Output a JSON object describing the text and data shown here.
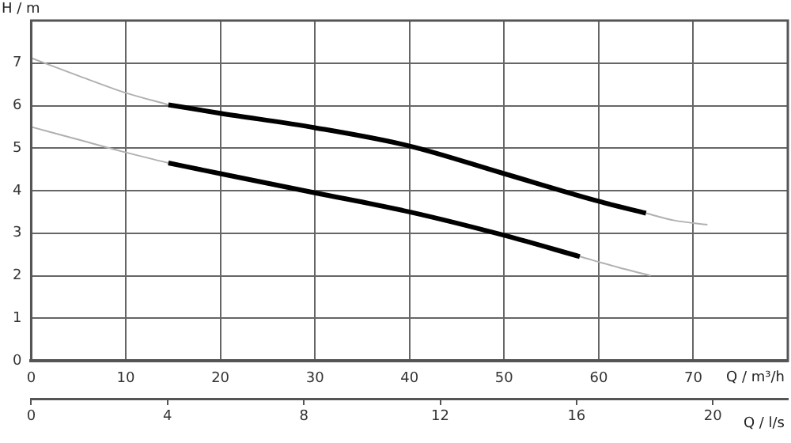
{
  "chart_data": {
    "type": "line",
    "xlabel": "Q / m³/h",
    "x2label": "Q / l/s",
    "ylabel": "H / m",
    "xlim": [
      0,
      80
    ],
    "xticks": [
      0,
      10,
      20,
      30,
      40,
      50,
      60,
      70
    ],
    "ylim": [
      0,
      8
    ],
    "yticks": [
      0,
      1,
      2,
      3,
      4,
      5,
      6,
      7
    ],
    "x2lim": [
      0,
      22.2
    ],
    "x2ticks": [
      0,
      4,
      8,
      12,
      16,
      20
    ],
    "grid": true,
    "legend": false,
    "marker": "none",
    "series": [
      {
        "color": "#b0b0b0",
        "x": [
          0,
          5,
          10,
          14.5,
          40,
          65,
          68,
          71.5
        ],
        "values": [
          7.12,
          6.7,
          6.3,
          6.02,
          null,
          3.47,
          3.3,
          3.2
        ]
      },
      {
        "color": "#b0b0b0",
        "x": [
          0,
          5,
          10,
          14.5,
          40,
          58,
          62,
          65.5
        ],
        "values": [
          5.5,
          5.2,
          4.9,
          4.65,
          null,
          2.45,
          2.2,
          2.0
        ]
      },
      {
        "color": "#000000",
        "x": [
          14.5,
          20,
          30,
          40,
          50,
          60,
          65
        ],
        "values": [
          6.02,
          5.82,
          5.48,
          5.05,
          4.4,
          3.75,
          3.47
        ]
      },
      {
        "color": "#000000",
        "x": [
          14.5,
          20,
          30,
          40,
          50,
          58
        ],
        "values": [
          4.65,
          4.4,
          3.95,
          3.5,
          2.95,
          2.45
        ]
      }
    ]
  }
}
